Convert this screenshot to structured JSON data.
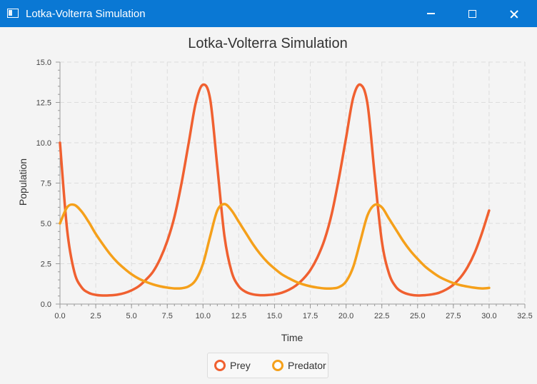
{
  "window": {
    "title": "Lotka-Volterra Simulation",
    "minimize_icon": "minimize-icon",
    "maximize_icon": "maximize-icon",
    "close_icon": "close-icon"
  },
  "chart_data": {
    "type": "line",
    "title": "Lotka-Volterra Simulation",
    "xlabel": "Time",
    "ylabel": "Population",
    "xlim": [
      0,
      32.5
    ],
    "ylim": [
      0,
      15
    ],
    "x_ticks": [
      "0.0",
      "2.5",
      "5.0",
      "7.5",
      "10.0",
      "12.5",
      "15.0",
      "17.5",
      "20.0",
      "22.5",
      "25.0",
      "27.5",
      "30.0",
      "32.5"
    ],
    "y_ticks": [
      "0.0",
      "2.5",
      "5.0",
      "7.5",
      "10.0",
      "12.5",
      "15.0"
    ],
    "grid": true,
    "legend_placement": "bottom-center",
    "series": [
      {
        "name": "Prey",
        "color": "#f06030",
        "x": [
          0,
          0.5,
          1,
          1.5,
          2,
          2.5,
          3,
          3.5,
          4,
          4.5,
          5,
          5.5,
          6,
          6.5,
          7,
          7.5,
          8,
          8.5,
          9,
          9.5,
          10,
          10.5,
          11,
          11.5,
          12,
          12.5,
          13,
          13.5,
          14,
          14.5,
          15,
          15.5,
          16,
          16.5,
          17,
          17.5,
          18,
          18.5,
          19,
          19.5,
          20,
          20.5,
          21,
          21.5,
          22,
          22.5,
          23,
          23.5,
          24,
          24.5,
          25,
          25.5,
          26,
          26.5,
          27,
          27.5,
          28,
          28.5,
          29,
          29.5,
          30
        ],
        "values": [
          10.0,
          4.6,
          2.0,
          1.05,
          0.7,
          0.57,
          0.53,
          0.54,
          0.58,
          0.68,
          0.85,
          1.1,
          1.5,
          2.0,
          2.8,
          3.9,
          5.4,
          7.5,
          10.0,
          12.5,
          13.6,
          12.7,
          8.5,
          4.2,
          2.0,
          1.1,
          0.75,
          0.6,
          0.55,
          0.56,
          0.6,
          0.7,
          0.88,
          1.15,
          1.55,
          2.1,
          2.9,
          4.0,
          5.6,
          7.8,
          10.3,
          12.8,
          13.6,
          12.4,
          8.0,
          3.9,
          1.9,
          1.05,
          0.72,
          0.58,
          0.53,
          0.55,
          0.6,
          0.7,
          0.9,
          1.2,
          1.65,
          2.3,
          3.2,
          4.4,
          5.8
        ]
      },
      {
        "name": "Predator",
        "color": "#f5a01a",
        "x": [
          0,
          0.5,
          1,
          1.5,
          2,
          2.5,
          3,
          3.5,
          4,
          4.5,
          5,
          5.5,
          6,
          6.5,
          7,
          7.5,
          8,
          8.5,
          9,
          9.5,
          10,
          10.5,
          11,
          11.5,
          12,
          12.5,
          13,
          13.5,
          14,
          14.5,
          15,
          15.5,
          16,
          16.5,
          17,
          17.5,
          18,
          18.5,
          19,
          19.5,
          20,
          20.5,
          21,
          21.5,
          22,
          22.5,
          23,
          23.5,
          24,
          24.5,
          25,
          25.5,
          26,
          26.5,
          27,
          27.5,
          28,
          28.5,
          29,
          29.5,
          30
        ],
        "values": [
          5.0,
          6.0,
          6.15,
          5.75,
          5.1,
          4.35,
          3.7,
          3.1,
          2.6,
          2.2,
          1.85,
          1.58,
          1.38,
          1.22,
          1.1,
          1.02,
          0.97,
          0.98,
          1.1,
          1.5,
          2.5,
          4.2,
          5.8,
          6.2,
          5.8,
          5.1,
          4.4,
          3.7,
          3.1,
          2.6,
          2.2,
          1.85,
          1.6,
          1.38,
          1.22,
          1.1,
          1.02,
          0.97,
          0.97,
          1.05,
          1.4,
          2.3,
          3.9,
          5.5,
          6.15,
          6.0,
          5.3,
          4.6,
          3.9,
          3.3,
          2.8,
          2.35,
          2.0,
          1.7,
          1.48,
          1.3,
          1.17,
          1.08,
          1.01,
          0.97,
          1.0
        ]
      }
    ]
  }
}
